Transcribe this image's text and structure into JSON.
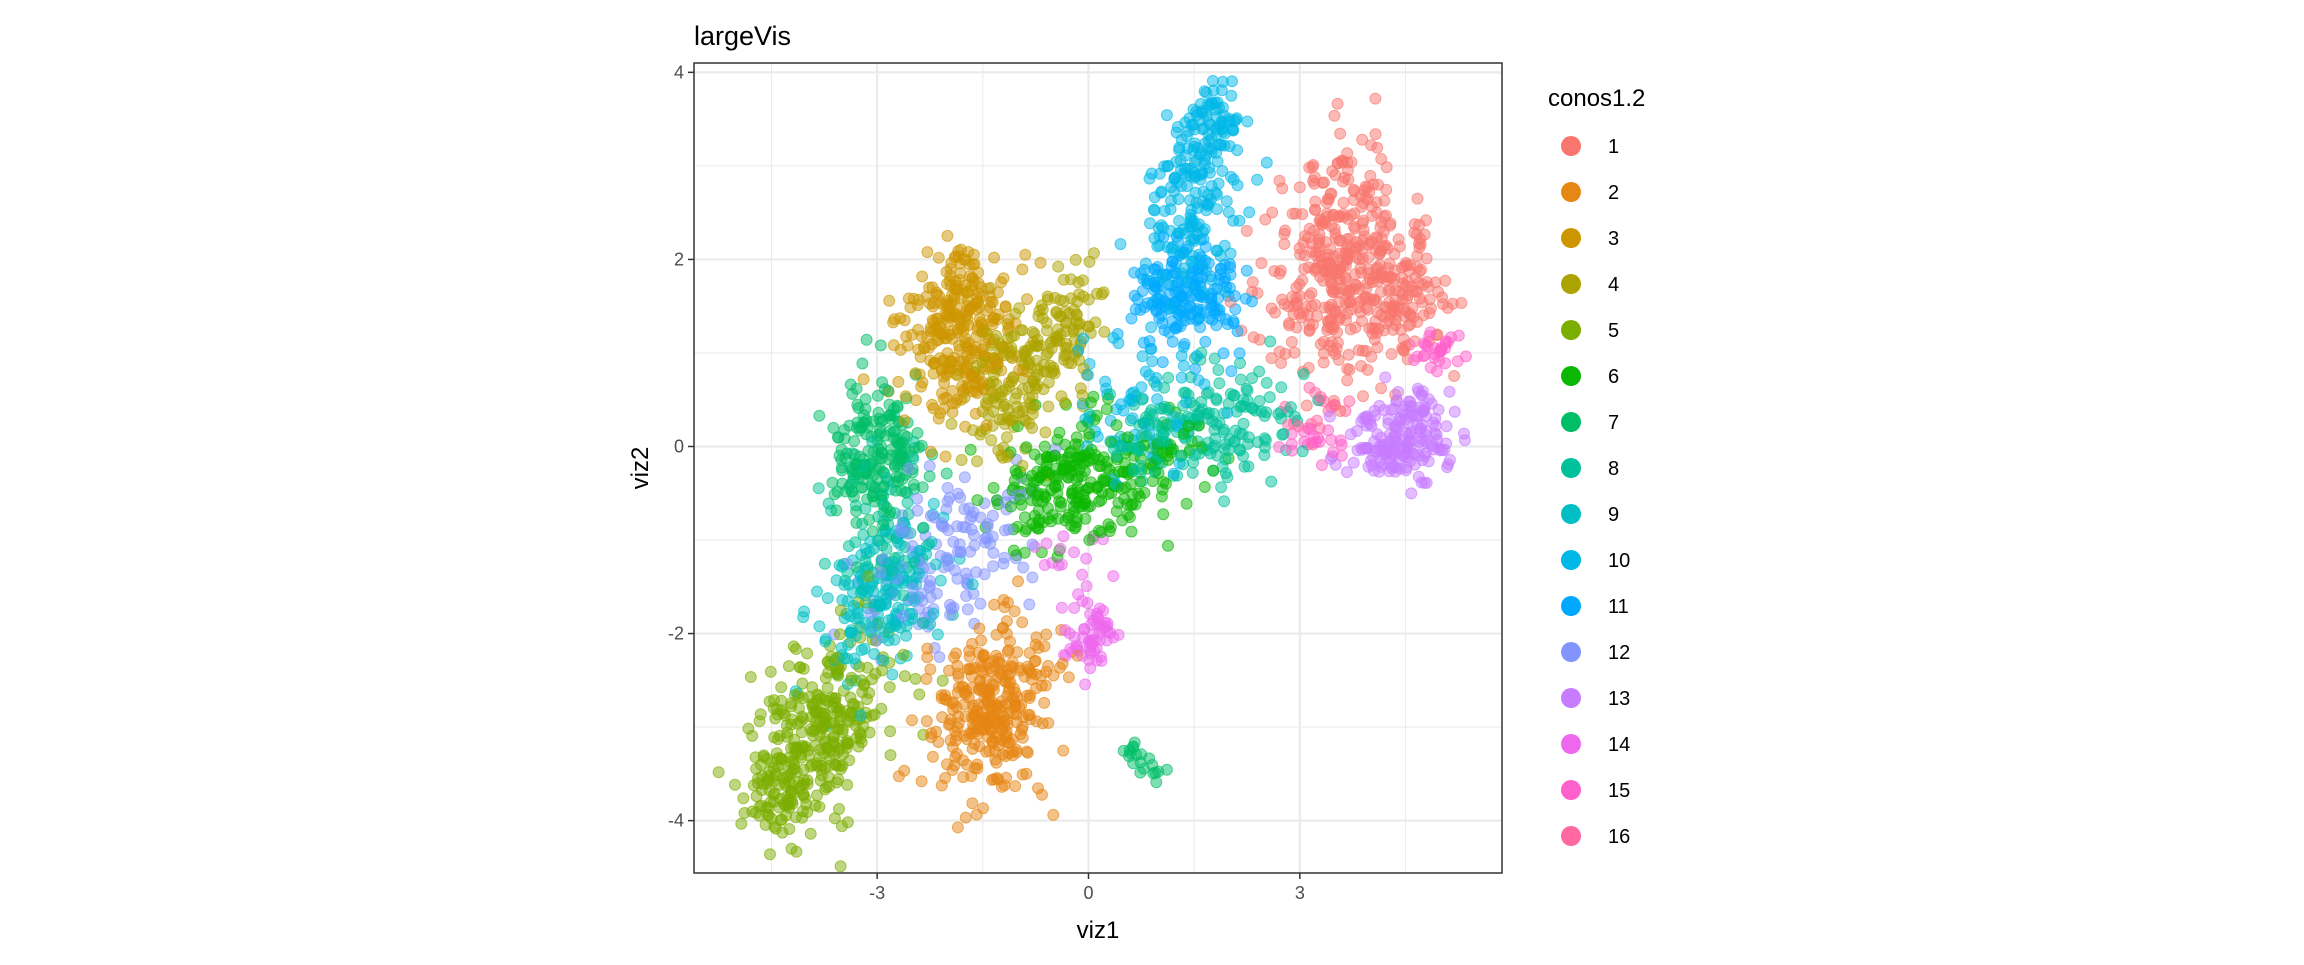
{
  "chart_data": {
    "type": "scatter",
    "title": "largeVis",
    "xlabel": "viz1",
    "ylabel": "viz2",
    "xlim": [
      -5.6,
      5.87
    ],
    "ylim": [
      -4.56,
      4.1
    ],
    "x_ticks": [
      -3,
      0,
      3
    ],
    "x_tick_labels": [
      "-3",
      "0",
      "3"
    ],
    "y_ticks": [
      -4,
      -2,
      0,
      2,
      4
    ],
    "y_tick_labels": [
      "-4",
      "-2",
      "0",
      "2",
      "4"
    ],
    "grid": true,
    "legend": {
      "title": "conos1.2",
      "placement": "right",
      "labels": [
        "1",
        "2",
        "3",
        "4",
        "5",
        "6",
        "7",
        "8",
        "9",
        "10",
        "11",
        "12",
        "13",
        "14",
        "15",
        "16"
      ]
    },
    "colors": [
      "#F8766D",
      "#E68613",
      "#CD9600",
      "#ABA300",
      "#7CAE00",
      "#0CB702",
      "#00BE67",
      "#00C19A",
      "#00BFC4",
      "#00B8E7",
      "#00A9FF",
      "#8494FF",
      "#C77CFF",
      "#ED68ED",
      "#FF61CC",
      "#FF68A1"
    ],
    "point_alpha": 0.5,
    "clusters": [
      {
        "label": "1",
        "groups": [
          {
            "cx": 3.6,
            "cy": 1.9,
            "sx": 0.55,
            "sy": 0.6,
            "rho": 0,
            "n": 420
          },
          {
            "cx": 4.6,
            "cy": 1.5,
            "sx": 0.3,
            "sy": 0.3,
            "rho": 0,
            "n": 60
          }
        ]
      },
      {
        "label": "2",
        "groups": [
          {
            "cx": -1.35,
            "cy": -2.8,
            "sx": 0.42,
            "sy": 0.5,
            "rho": 0.3,
            "n": 320
          }
        ]
      },
      {
        "label": "3",
        "groups": [
          {
            "cx": -1.9,
            "cy": 1.15,
            "sx": 0.45,
            "sy": 0.45,
            "rho": 0,
            "n": 260
          },
          {
            "cx": -1.85,
            "cy": 1.8,
            "sx": 0.15,
            "sy": 0.2,
            "rho": 0,
            "n": 40
          }
        ]
      },
      {
        "label": "4",
        "groups": [
          {
            "cx": -0.9,
            "cy": 0.8,
            "sx": 0.45,
            "sy": 0.45,
            "rho": 0.4,
            "n": 180
          },
          {
            "cx": -0.2,
            "cy": 1.4,
            "sx": 0.2,
            "sy": 0.3,
            "rho": 0,
            "n": 50
          }
        ]
      },
      {
        "label": "5",
        "groups": [
          {
            "cx": -3.8,
            "cy": -3.0,
            "sx": 0.5,
            "sy": 0.5,
            "rho": 0.4,
            "n": 300
          },
          {
            "cx": -4.4,
            "cy": -3.7,
            "sx": 0.3,
            "sy": 0.2,
            "rho": 0,
            "n": 60
          }
        ]
      },
      {
        "label": "6",
        "groups": [
          {
            "cx": -0.3,
            "cy": -0.4,
            "sx": 0.5,
            "sy": 0.35,
            "rho": 0.2,
            "n": 220
          },
          {
            "cx": 0.8,
            "cy": -0.3,
            "sx": 0.5,
            "sy": 0.3,
            "rho": 0.5,
            "n": 70
          }
        ]
      },
      {
        "label": "7",
        "groups": [
          {
            "cx": -3.0,
            "cy": -0.1,
            "sx": 0.32,
            "sy": 0.4,
            "rho": 0,
            "n": 200
          },
          {
            "cx": 0.75,
            "cy": -3.35,
            "sx": 0.15,
            "sy": 0.12,
            "rho": -0.6,
            "n": 20
          }
        ]
      },
      {
        "label": "8",
        "groups": [
          {
            "cx": 1.6,
            "cy": 0.2,
            "sx": 0.7,
            "sy": 0.3,
            "rho": 0.2,
            "n": 200
          },
          {
            "cx": -3.0,
            "cy": -0.9,
            "sx": 0.4,
            "sy": 0.4,
            "rho": 0,
            "n": 60
          }
        ]
      },
      {
        "label": "9",
        "groups": [
          {
            "cx": -2.9,
            "cy": -1.6,
            "sx": 0.45,
            "sy": 0.45,
            "rho": 0.5,
            "n": 180
          }
        ]
      },
      {
        "label": "10",
        "groups": [
          {
            "cx": 1.5,
            "cy": 2.6,
            "sx": 0.35,
            "sy": 0.55,
            "rho": 0.3,
            "n": 200
          },
          {
            "cx": 1.8,
            "cy": 3.5,
            "sx": 0.2,
            "sy": 0.12,
            "rho": 0,
            "n": 40
          },
          {
            "cx": 0.8,
            "cy": 0.5,
            "sx": 0.5,
            "sy": 0.4,
            "rho": 0,
            "n": 60
          }
        ]
      },
      {
        "label": "11",
        "groups": [
          {
            "cx": 1.4,
            "cy": 1.6,
            "sx": 0.4,
            "sy": 0.28,
            "rho": 0,
            "n": 170
          }
        ]
      },
      {
        "label": "12",
        "groups": [
          {
            "cx": -2.0,
            "cy": -1.2,
            "sx": 0.6,
            "sy": 0.45,
            "rho": 0.4,
            "n": 140
          }
        ]
      },
      {
        "label": "13",
        "groups": [
          {
            "cx": 4.4,
            "cy": 0.05,
            "sx": 0.38,
            "sy": 0.22,
            "rho": 0,
            "n": 160
          },
          {
            "cx": 4.7,
            "cy": 0.4,
            "sx": 0.1,
            "sy": 0.15,
            "rho": 0,
            "n": 30
          }
        ]
      },
      {
        "label": "14",
        "groups": [
          {
            "cx": 0.0,
            "cy": -2.0,
            "sx": 0.18,
            "sy": 0.18,
            "rho": 0,
            "n": 60
          },
          {
            "cx": -0.3,
            "cy": -1.2,
            "sx": 0.4,
            "sy": 0.2,
            "rho": 0,
            "n": 15
          }
        ]
      },
      {
        "label": "15",
        "groups": [
          {
            "cx": 4.95,
            "cy": 1.02,
            "sx": 0.2,
            "sy": 0.08,
            "rho": 0,
            "n": 30
          },
          {
            "cx": 3.2,
            "cy": 0.05,
            "sx": 0.25,
            "sy": 0.08,
            "rho": 0,
            "n": 20
          }
        ]
      },
      {
        "label": "16",
        "groups": [
          {
            "cx": 3.3,
            "cy": 0.3,
            "sx": 0.3,
            "sy": 0.2,
            "rho": 0,
            "n": 20
          }
        ]
      }
    ]
  }
}
